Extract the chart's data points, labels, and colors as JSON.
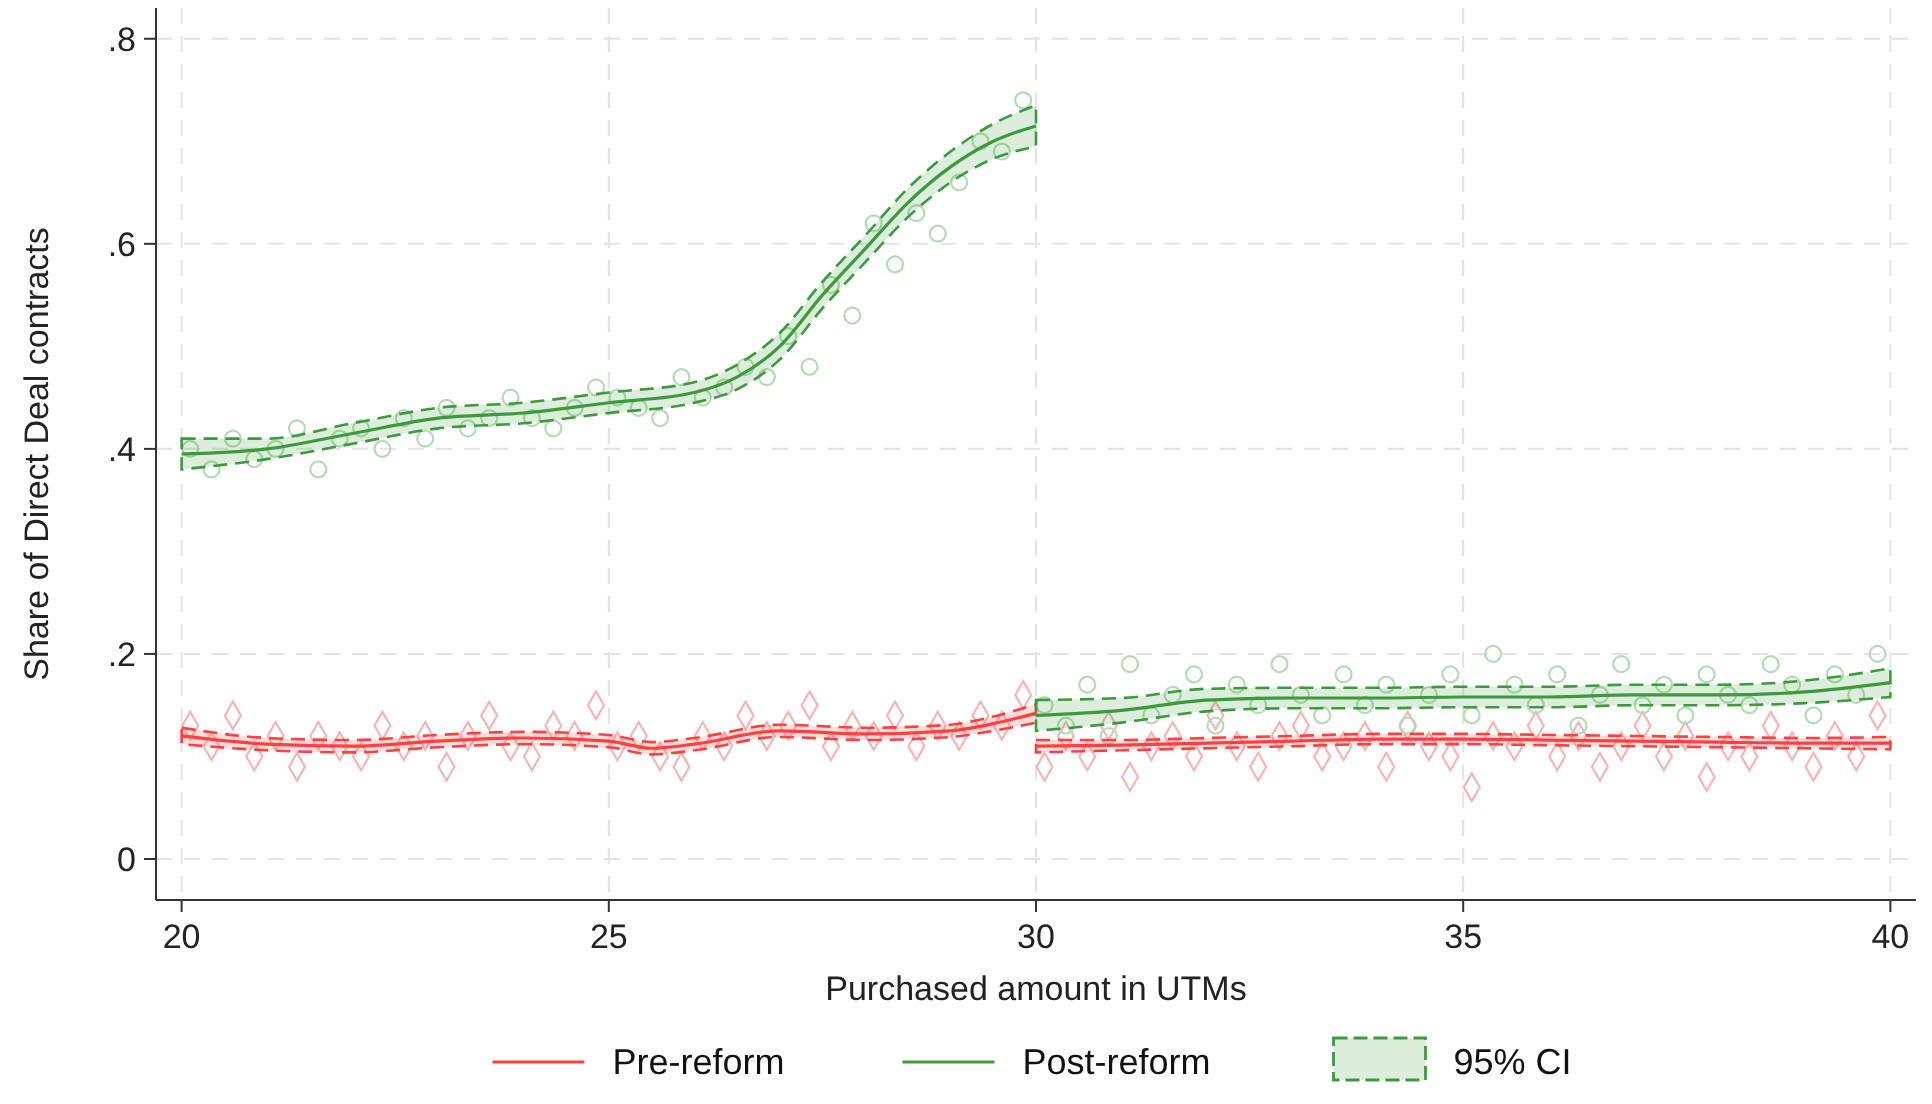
{
  "chart_data": {
    "type": "line",
    "xlabel": "Purchased amount in UTMs",
    "ylabel": "Share of Direct Deal contracts",
    "xlim": [
      19.7,
      40.3
    ],
    "ylim": [
      -0.04,
      0.83
    ],
    "xticks": [
      20,
      25,
      30,
      35,
      40
    ],
    "yticks": [
      {
        "value": 0,
        "label": "0"
      },
      {
        "value": 0.2,
        "label": ".2"
      },
      {
        "value": 0.4,
        "label": ".4"
      },
      {
        "value": 0.6,
        "label": ".6"
      },
      {
        "value": 0.8,
        "label": ".8"
      }
    ],
    "grid": true,
    "legend": "bottom",
    "annotations": [
      "95% CI"
    ],
    "series": [
      {
        "type": "scatter",
        "marker": "diamond",
        "color": "#f7b4b4",
        "x": [
          20.1,
          20.35,
          20.6,
          20.85,
          21.1,
          21.35,
          21.6,
          21.85,
          22.1,
          22.35,
          22.6,
          22.85,
          23.1,
          23.35,
          23.6,
          23.85,
          24.1,
          24.35,
          24.6,
          24.85,
          25.1,
          25.35,
          25.6,
          25.85,
          26.1,
          26.35,
          26.6,
          26.85,
          27.1,
          27.35,
          27.6,
          27.85,
          28.1,
          28.35,
          28.6,
          28.85,
          29.1,
          29.35,
          29.6,
          29.85,
          30.1,
          30.35,
          30.6,
          30.85,
          31.1,
          31.35,
          31.6,
          31.85,
          32.1,
          32.35,
          32.6,
          32.85,
          33.1,
          33.35,
          33.6,
          33.85,
          34.1,
          34.35,
          34.6,
          34.85,
          35.1,
          35.35,
          35.6,
          35.85,
          36.1,
          36.35,
          36.6,
          36.85,
          37.1,
          37.35,
          37.6,
          37.85,
          38.1,
          38.35,
          38.6,
          38.85,
          39.1,
          39.35,
          39.6,
          39.85
        ],
        "values": [
          0.13,
          0.11,
          0.14,
          0.1,
          0.12,
          0.09,
          0.12,
          0.11,
          0.1,
          0.13,
          0.11,
          0.12,
          0.09,
          0.12,
          0.14,
          0.11,
          0.1,
          0.13,
          0.12,
          0.15,
          0.11,
          0.12,
          0.1,
          0.09,
          0.12,
          0.11,
          0.14,
          0.12,
          0.13,
          0.15,
          0.11,
          0.13,
          0.12,
          0.14,
          0.11,
          0.13,
          0.12,
          0.14,
          0.13,
          0.16,
          0.09,
          0.12,
          0.1,
          0.13,
          0.08,
          0.11,
          0.12,
          0.1,
          0.14,
          0.11,
          0.09,
          0.12,
          0.13,
          0.1,
          0.11,
          0.12,
          0.09,
          0.13,
          0.11,
          0.1,
          0.07,
          0.12,
          0.11,
          0.13,
          0.1,
          0.12,
          0.09,
          0.11,
          0.13,
          0.1,
          0.12,
          0.08,
          0.11,
          0.1,
          0.13,
          0.11,
          0.09,
          0.12,
          0.1,
          0.14
        ]
      },
      {
        "type": "scatter",
        "marker": "circle",
        "color": "#b4dcb4",
        "x": [
          20.1,
          20.35,
          20.6,
          20.85,
          21.1,
          21.35,
          21.6,
          21.85,
          22.1,
          22.35,
          22.6,
          22.85,
          23.1,
          23.35,
          23.6,
          23.85,
          24.1,
          24.35,
          24.6,
          24.85,
          25.1,
          25.35,
          25.6,
          25.85,
          26.1,
          26.35,
          26.6,
          26.85,
          27.1,
          27.35,
          27.6,
          27.85,
          28.1,
          28.35,
          28.6,
          28.85,
          29.1,
          29.35,
          29.6,
          29.85,
          30.1,
          30.35,
          30.6,
          30.85,
          31.1,
          31.35,
          31.6,
          31.85,
          32.1,
          32.35,
          32.6,
          32.85,
          33.1,
          33.35,
          33.6,
          33.85,
          34.1,
          34.35,
          34.6,
          34.85,
          35.1,
          35.35,
          35.6,
          35.85,
          36.1,
          36.35,
          36.6,
          36.85,
          37.1,
          37.35,
          37.6,
          37.85,
          38.1,
          38.35,
          38.6,
          38.85,
          39.1,
          39.35,
          39.6,
          39.85
        ],
        "values": [
          0.4,
          0.38,
          0.41,
          0.39,
          0.4,
          0.42,
          0.38,
          0.41,
          0.42,
          0.4,
          0.43,
          0.41,
          0.44,
          0.42,
          0.43,
          0.45,
          0.43,
          0.42,
          0.44,
          0.46,
          0.45,
          0.44,
          0.43,
          0.47,
          0.45,
          0.46,
          0.48,
          0.47,
          0.51,
          0.48,
          0.56,
          0.53,
          0.62,
          0.58,
          0.63,
          0.61,
          0.66,
          0.7,
          0.69,
          0.74,
          0.15,
          0.13,
          0.17,
          0.12,
          0.19,
          0.14,
          0.16,
          0.18,
          0.13,
          0.17,
          0.15,
          0.19,
          0.16,
          0.14,
          0.18,
          0.15,
          0.17,
          0.13,
          0.16,
          0.18,
          0.14,
          0.2,
          0.17,
          0.15,
          0.18,
          0.13,
          0.16,
          0.19,
          0.15,
          0.17,
          0.14,
          0.18,
          0.16,
          0.15,
          0.19,
          0.17,
          0.14,
          0.18,
          0.16,
          0.2
        ]
      },
      {
        "name": "Pre-reform",
        "color": "#ff4040",
        "x": [
          20,
          21,
          22,
          23,
          24,
          25,
          25.5,
          26,
          27,
          28,
          29,
          29.5,
          30
        ],
        "values": [
          0.12,
          0.112,
          0.11,
          0.115,
          0.118,
          0.115,
          0.108,
          0.112,
          0.125,
          0.122,
          0.125,
          0.132,
          0.142
        ],
        "lower": [
          0.112,
          0.106,
          0.104,
          0.109,
          0.112,
          0.109,
          0.102,
          0.106,
          0.119,
          0.116,
          0.119,
          0.125,
          0.133
        ],
        "upper": [
          0.128,
          0.118,
          0.116,
          0.121,
          0.124,
          0.121,
          0.114,
          0.118,
          0.131,
          0.128,
          0.131,
          0.139,
          0.151
        ]
      },
      {
        "color": "#ff4040",
        "x": [
          30,
          31,
          32,
          33,
          34,
          35,
          36,
          37,
          38,
          39,
          40
        ],
        "values": [
          0.11,
          0.111,
          0.113,
          0.115,
          0.117,
          0.117,
          0.116,
          0.115,
          0.114,
          0.113,
          0.113
        ],
        "lower": [
          0.104,
          0.106,
          0.108,
          0.11,
          0.112,
          0.112,
          0.111,
          0.11,
          0.109,
          0.108,
          0.107
        ],
        "upper": [
          0.116,
          0.116,
          0.118,
          0.12,
          0.122,
          0.122,
          0.121,
          0.12,
          0.119,
          0.118,
          0.119
        ]
      },
      {
        "name": "Post-reform",
        "color": "#3c9a3c",
        "x": [
          20,
          21,
          22,
          23,
          24,
          25,
          26,
          26.5,
          27,
          27.5,
          28,
          28.5,
          29,
          29.5,
          30
        ],
        "values": [
          0.395,
          0.4,
          0.415,
          0.43,
          0.435,
          0.445,
          0.455,
          0.47,
          0.5,
          0.55,
          0.595,
          0.64,
          0.675,
          0.7,
          0.715
        ],
        "lower": [
          0.38,
          0.39,
          0.405,
          0.42,
          0.425,
          0.435,
          0.445,
          0.458,
          0.487,
          0.537,
          0.582,
          0.626,
          0.66,
          0.683,
          0.695
        ],
        "upper": [
          0.41,
          0.41,
          0.425,
          0.44,
          0.445,
          0.455,
          0.465,
          0.482,
          0.513,
          0.563,
          0.608,
          0.654,
          0.69,
          0.717,
          0.735
        ]
      },
      {
        "color": "#3c9a3c",
        "x": [
          30,
          31,
          32,
          33,
          34,
          35,
          36,
          37,
          38,
          39,
          40
        ],
        "values": [
          0.14,
          0.145,
          0.155,
          0.157,
          0.157,
          0.158,
          0.158,
          0.16,
          0.16,
          0.163,
          0.172
        ],
        "lower": [
          0.125,
          0.133,
          0.144,
          0.147,
          0.147,
          0.148,
          0.148,
          0.15,
          0.15,
          0.152,
          0.158
        ],
        "upper": [
          0.155,
          0.157,
          0.166,
          0.167,
          0.167,
          0.168,
          0.168,
          0.17,
          0.17,
          0.174,
          0.186
        ]
      }
    ]
  }
}
